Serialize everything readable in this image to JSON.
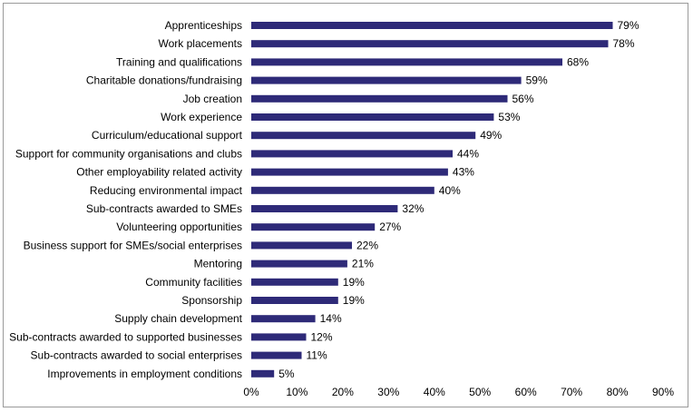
{
  "chart_data": {
    "type": "bar",
    "orientation": "horizontal",
    "title": "",
    "xlabel": "",
    "ylabel": "",
    "xlim": [
      0,
      90
    ],
    "bar_color": "#2e2a78",
    "categories": [
      "Apprenticeships",
      "Work placements",
      "Training and qualifications",
      "Charitable donations/fundraising",
      "Job creation",
      "Work experience",
      "Curriculum/educational support",
      "Support for community organisations and clubs",
      "Other employability related activity",
      "Reducing environmental impact",
      "Sub-contracts awarded to SMEs",
      "Volunteering opportunities",
      "Business support for SMEs/social enterprises",
      "Mentoring",
      "Community facilities",
      "Sponsorship",
      "Supply chain development",
      "Sub-contracts awarded to supported businesses",
      "Sub-contracts awarded to social enterprises",
      "Improvements in employment conditions"
    ],
    "values": [
      79,
      78,
      68,
      59,
      56,
      53,
      49,
      44,
      43,
      40,
      32,
      27,
      22,
      21,
      19,
      19,
      14,
      12,
      11,
      5
    ],
    "value_labels": [
      "79%",
      "78%",
      "68%",
      "59%",
      "56%",
      "53%",
      "49%",
      "44%",
      "43%",
      "40%",
      "32%",
      "27%",
      "22%",
      "21%",
      "19%",
      "19%",
      "14%",
      "12%",
      "11%",
      "5%"
    ],
    "ticks": [
      0,
      10,
      20,
      30,
      40,
      50,
      60,
      70,
      80,
      90
    ],
    "tick_labels": [
      "0%",
      "10%",
      "20%",
      "30%",
      "40%",
      "50%",
      "60%",
      "70%",
      "80%",
      "90%"
    ]
  }
}
